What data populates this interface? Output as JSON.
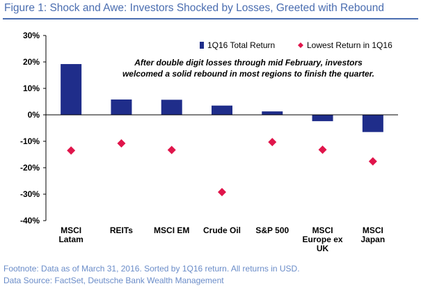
{
  "figure": {
    "title": "Figure 1: Shock and Awe: Investors Shocked by Losses, Greeted with Rebound",
    "footnote": "Footnote: Data as of March 31, 2016. Sorted by 1Q16 return. All returns in USD.",
    "source": "Data Source: FactSet, Deutsche Bank Wealth Management"
  },
  "chart_data": {
    "type": "bar",
    "categories": [
      [
        "MSCI",
        "Latam"
      ],
      [
        "REITs"
      ],
      [
        "MSCI EM"
      ],
      [
        "Crude Oil"
      ],
      [
        "S&P 500"
      ],
      [
        "MSCI",
        "Europe ex",
        "UK"
      ],
      [
        "MSCI",
        "Japan"
      ]
    ],
    "series": [
      {
        "name": "1Q16 Total Return",
        "kind": "bar",
        "color": "#1f2d8a",
        "values": [
          19.2,
          5.8,
          5.7,
          3.5,
          1.3,
          -2.4,
          -6.5
        ]
      },
      {
        "name": "Lowest Return in 1Q16",
        "kind": "marker",
        "color": "#e0154b",
        "values": [
          -13.5,
          -10.8,
          -13.3,
          -29.2,
          -10.3,
          -13.2,
          -17.6
        ]
      }
    ],
    "ylim": [
      -40,
      30
    ],
    "yticks": [
      30,
      20,
      10,
      0,
      -10,
      -20,
      -30,
      -40
    ],
    "ytick_labels": [
      "30%",
      "20%",
      "10%",
      "0%",
      "-10%",
      "-20%",
      "-30%",
      "-40%"
    ],
    "annotation": [
      "After double digit losses through mid February, investors",
      "welcomed a solid rebound in most regions to finish the quarter."
    ],
    "legend_position": "top-right",
    "grid": false,
    "xlabel": "",
    "ylabel": ""
  }
}
